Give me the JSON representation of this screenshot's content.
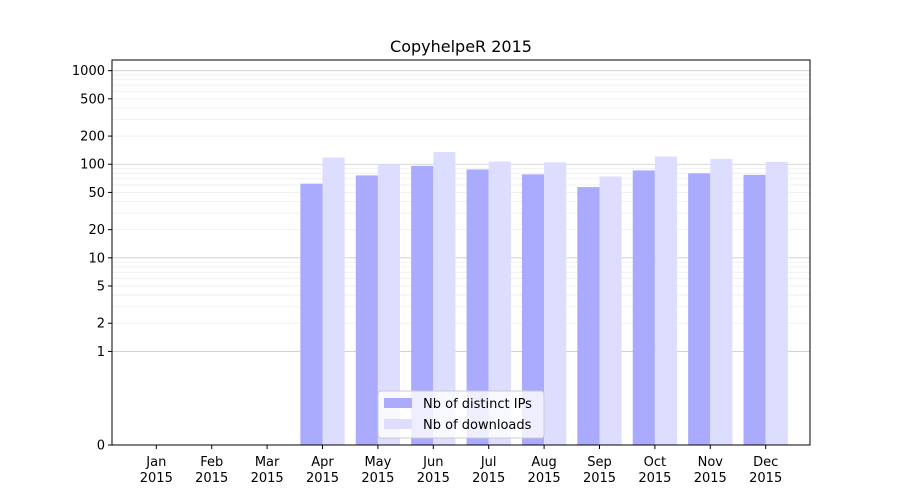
{
  "chart_data": {
    "type": "bar",
    "title": "CopyhelpeR 2015",
    "xlabel": "",
    "ylabel": "",
    "yscale": "symlog",
    "ylim": [
      0,
      1300
    ],
    "yticks": [
      0,
      1,
      2,
      5,
      10,
      20,
      50,
      100,
      200,
      500,
      1000
    ],
    "ytick_labels": [
      "0",
      "1",
      "2",
      "5",
      "10",
      "20",
      "50",
      "100",
      "200",
      "500",
      "1000"
    ],
    "categories": [
      [
        "Jan",
        "2015"
      ],
      [
        "Feb",
        "2015"
      ],
      [
        "Mar",
        "2015"
      ],
      [
        "Apr",
        "2015"
      ],
      [
        "May",
        "2015"
      ],
      [
        "Jun",
        "2015"
      ],
      [
        "Jul",
        "2015"
      ],
      [
        "Aug",
        "2015"
      ],
      [
        "Sep",
        "2015"
      ],
      [
        "Oct",
        "2015"
      ],
      [
        "Nov",
        "2015"
      ],
      [
        "Dec",
        "2015"
      ]
    ],
    "series": [
      {
        "name": "Nb of distinct IPs",
        "color": "#aaaaff",
        "values": [
          0,
          0,
          0,
          62,
          76,
          96,
          88,
          78,
          57,
          86,
          80,
          77
        ]
      },
      {
        "name": "Nb of downloads",
        "color": "#ddddff",
        "values": [
          0,
          0,
          0,
          118,
          100,
          135,
          107,
          105,
          74,
          121,
          114,
          106
        ]
      }
    ],
    "grid": "horizontal major and minor",
    "legend_position": "lower center"
  }
}
